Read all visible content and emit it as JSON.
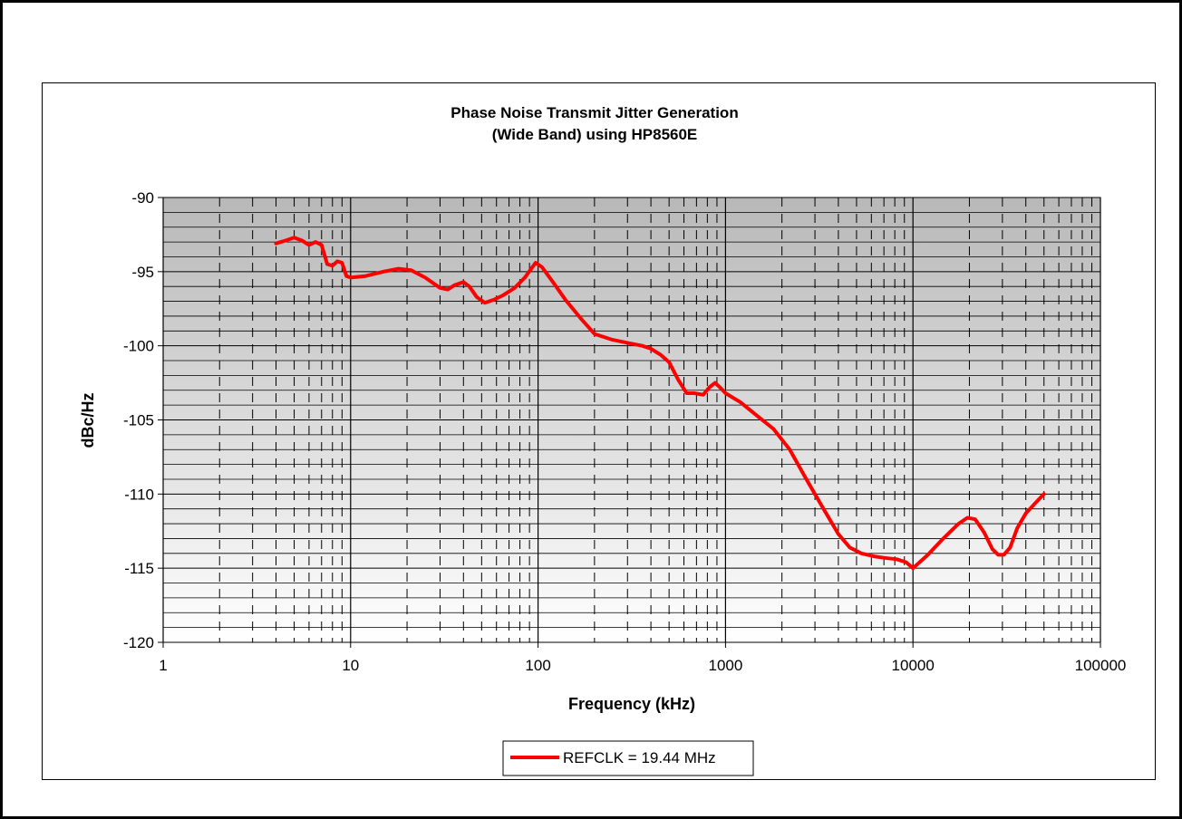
{
  "chart_data": {
    "type": "line",
    "title_lines": [
      "Phase Noise Transmit Jitter Generation",
      "(Wide Band) using HP8560E"
    ],
    "xlabel": "Frequency (kHz)",
    "ylabel": "dBc/Hz",
    "x_scale": "log",
    "xlim": [
      1,
      100000
    ],
    "ylim": [
      -120,
      -90
    ],
    "x_ticks": [
      1,
      10,
      100,
      1000,
      10000,
      100000
    ],
    "x_tick_labels": [
      "1",
      "10",
      "100",
      "1000",
      "10000",
      "100000"
    ],
    "y_ticks": [
      -90,
      -95,
      -100,
      -105,
      -110,
      -115,
      -120
    ],
    "y_tick_labels": [
      "-90",
      "-95",
      "-100",
      "-105",
      "-110",
      "-115",
      "-120"
    ],
    "grid": true,
    "legend_position": "bottom-center",
    "series": [
      {
        "name": "REFCLK = 19.44 MHz",
        "color": "#ff0000",
        "points": [
          [
            4,
            -93.1
          ],
          [
            4.5,
            -92.9
          ],
          [
            5,
            -92.7
          ],
          [
            5.5,
            -92.9
          ],
          [
            6,
            -93.2
          ],
          [
            6.5,
            -93.0
          ],
          [
            7,
            -93.2
          ],
          [
            7.5,
            -94.5
          ],
          [
            8,
            -94.6
          ],
          [
            8.5,
            -94.3
          ],
          [
            9,
            -94.4
          ],
          [
            9.5,
            -95.3
          ],
          [
            10,
            -95.4
          ],
          [
            12,
            -95.3
          ],
          [
            15,
            -95.0
          ],
          [
            18,
            -94.8
          ],
          [
            21,
            -94.9
          ],
          [
            25,
            -95.4
          ],
          [
            30,
            -96.1
          ],
          [
            33,
            -96.2
          ],
          [
            36,
            -95.9
          ],
          [
            40,
            -95.7
          ],
          [
            43,
            -96.0
          ],
          [
            47,
            -96.7
          ],
          [
            52,
            -97.1
          ],
          [
            58,
            -96.9
          ],
          [
            65,
            -96.6
          ],
          [
            75,
            -96.1
          ],
          [
            85,
            -95.4
          ],
          [
            92,
            -94.8
          ],
          [
            97,
            -94.4
          ],
          [
            105,
            -94.7
          ],
          [
            120,
            -95.7
          ],
          [
            140,
            -96.9
          ],
          [
            170,
            -98.2
          ],
          [
            200,
            -99.2
          ],
          [
            250,
            -99.6
          ],
          [
            300,
            -99.8
          ],
          [
            360,
            -100.0
          ],
          [
            400,
            -100.2
          ],
          [
            450,
            -100.6
          ],
          [
            500,
            -101.1
          ],
          [
            560,
            -102.3
          ],
          [
            620,
            -103.2
          ],
          [
            680,
            -103.2
          ],
          [
            760,
            -103.3
          ],
          [
            820,
            -102.8
          ],
          [
            880,
            -102.5
          ],
          [
            950,
            -102.9
          ],
          [
            1000,
            -103.2
          ],
          [
            1200,
            -103.8
          ],
          [
            1500,
            -104.8
          ],
          [
            1800,
            -105.6
          ],
          [
            2200,
            -107.0
          ],
          [
            2700,
            -109.0
          ],
          [
            3300,
            -110.9
          ],
          [
            4000,
            -112.7
          ],
          [
            4600,
            -113.6
          ],
          [
            5300,
            -114.0
          ],
          [
            6200,
            -114.2
          ],
          [
            7000,
            -114.3
          ],
          [
            8200,
            -114.4
          ],
          [
            9200,
            -114.6
          ],
          [
            10000,
            -115.0
          ],
          [
            12000,
            -114.1
          ],
          [
            14500,
            -113.0
          ],
          [
            17500,
            -112.0
          ],
          [
            19500,
            -111.6
          ],
          [
            21500,
            -111.7
          ],
          [
            24000,
            -112.6
          ],
          [
            26500,
            -113.7
          ],
          [
            28500,
            -114.1
          ],
          [
            30500,
            -114.1
          ],
          [
            33000,
            -113.6
          ],
          [
            36000,
            -112.3
          ],
          [
            40000,
            -111.3
          ],
          [
            45000,
            -110.6
          ],
          [
            50000,
            -110.0
          ]
        ]
      }
    ]
  }
}
